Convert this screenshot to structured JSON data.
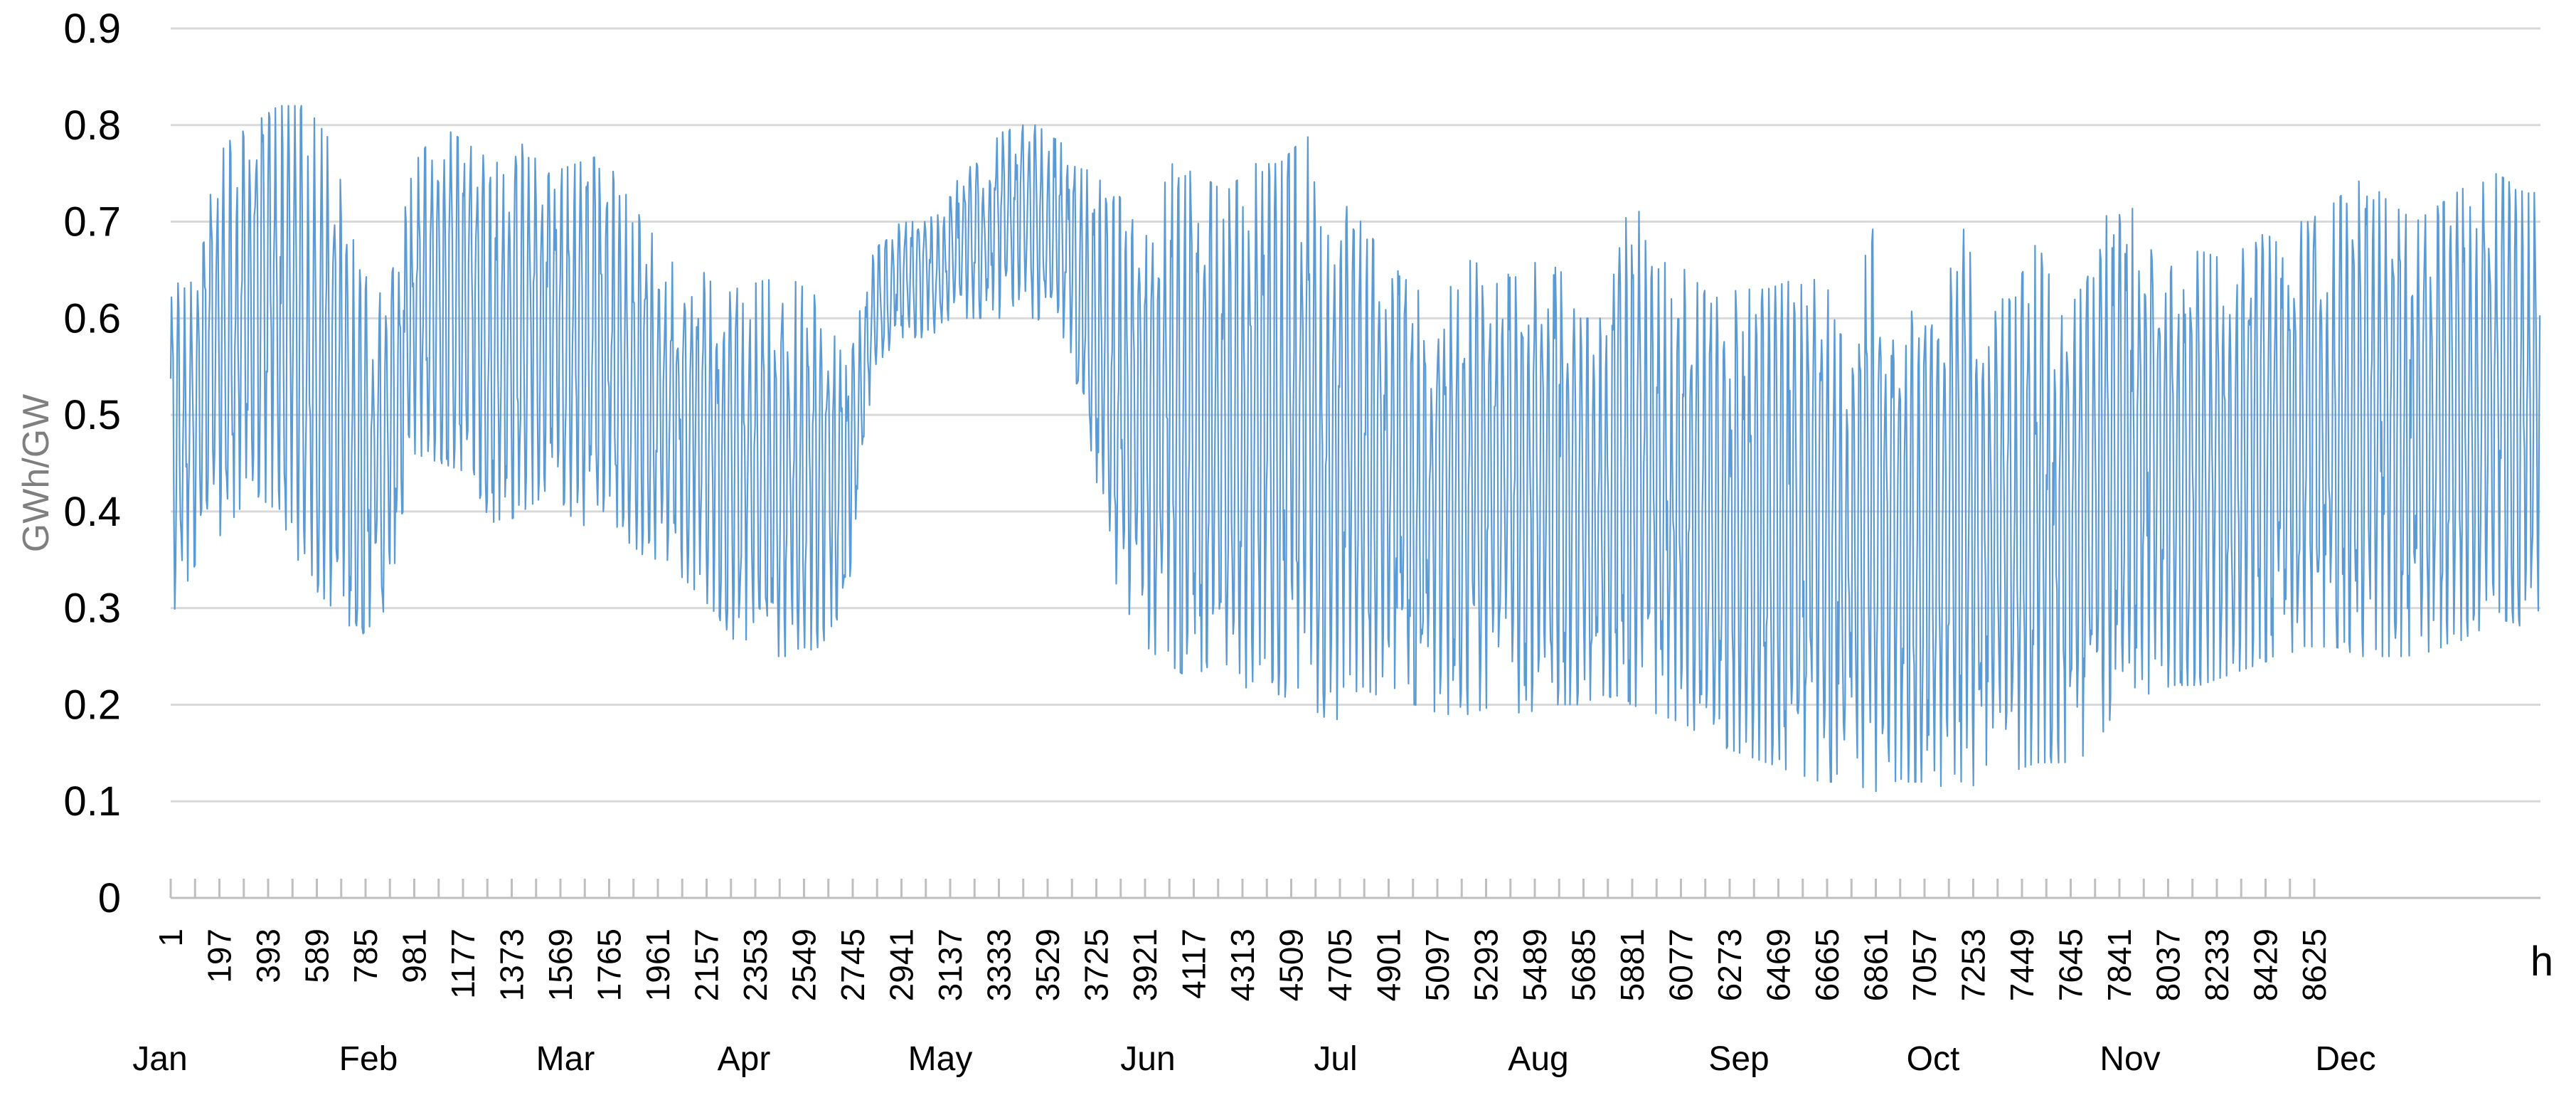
{
  "chart_data": {
    "type": "line",
    "title": "",
    "ylabel": "GWh/GW",
    "xlabel": "h",
    "ylim": [
      0,
      0.9
    ],
    "xlim": [
      1,
      8760
    ],
    "yticks": [
      "0",
      "0.1",
      "0.2",
      "0.3",
      "0.4",
      "0.5",
      "0.6",
      "0.7",
      "0.8",
      "0.9"
    ],
    "ytick_values": [
      0,
      0.1,
      0.2,
      0.3,
      0.4,
      0.5,
      0.6,
      0.7,
      0.8,
      0.9
    ],
    "xticks": [
      "1",
      "197",
      "393",
      "589",
      "785",
      "981",
      "1177",
      "1373",
      "1569",
      "1765",
      "1961",
      "2157",
      "2353",
      "2549",
      "2745",
      "2941",
      "3137",
      "3333",
      "3529",
      "3725",
      "3921",
      "4117",
      "4313",
      "4509",
      "4705",
      "4901",
      "5097",
      "5293",
      "5489",
      "5685",
      "5881",
      "6077",
      "6273",
      "6469",
      "6665",
      "6861",
      "7057",
      "7253",
      "7449",
      "7645",
      "7841",
      "8037",
      "8233",
      "8429",
      "8625"
    ],
    "months": [
      {
        "label": "Jan",
        "hour": 1
      },
      {
        "label": "Feb",
        "hour": 745
      },
      {
        "label": "Mar",
        "hour": 1417
      },
      {
        "label": "Apr",
        "hour": 2161
      },
      {
        "label": "May",
        "hour": 2881
      },
      {
        "label": "Jun",
        "hour": 3625
      },
      {
        "label": "Jul",
        "hour": 4345
      },
      {
        "label": "Aug",
        "hour": 5089
      },
      {
        "label": "Sep",
        "hour": 5833
      },
      {
        "label": "Oct",
        "hour": 6553
      },
      {
        "label": "Nov",
        "hour": 7297
      },
      {
        "label": "Dec",
        "hour": 8017
      }
    ],
    "grid": true,
    "legend": "none",
    "color": "#5b9bd5",
    "series": [
      {
        "description_note": "hourly capacity factor; daily min/max envelope read from chart",
        "envelope_hours": [
          1,
          100,
          200,
          300,
          400,
          500,
          600,
          700,
          800,
          900,
          1000,
          1100,
          1200,
          1300,
          1400,
          1500,
          1600,
          1700,
          1800,
          1900,
          2000,
          2100,
          2200,
          2300,
          2400,
          2500,
          2600,
          2700,
          2800,
          2900,
          3000,
          3100,
          3200,
          3300,
          3400,
          3500,
          3600,
          3700,
          3800,
          3900,
          4000,
          4100,
          4200,
          4300,
          4400,
          4500,
          4600,
          4700,
          4800,
          4900,
          5000,
          5100,
          5200,
          5300,
          5400,
          5500,
          5600,
          5700,
          5800,
          5900,
          6000,
          6100,
          6200,
          6300,
          6400,
          6500,
          6600,
          6700,
          6800,
          6900,
          7000,
          7100,
          7200,
          7300,
          7400,
          7500,
          7600,
          7700,
          7800,
          7900,
          8000,
          8100,
          8200,
          8300,
          8400,
          8500,
          8600,
          8700,
          8760
        ],
        "max": [
          0.62,
          0.68,
          0.78,
          0.8,
          0.82,
          0.82,
          0.78,
          0.65,
          0.62,
          0.76,
          0.8,
          0.78,
          0.76,
          0.78,
          0.75,
          0.76,
          0.77,
          0.72,
          0.68,
          0.64,
          0.65,
          0.63,
          0.64,
          0.64,
          0.62,
          0.55,
          0.67,
          0.7,
          0.7,
          0.74,
          0.77,
          0.8,
          0.8,
          0.78,
          0.75,
          0.73,
          0.68,
          0.76,
          0.75,
          0.73,
          0.76,
          0.76,
          0.79,
          0.73,
          0.7,
          0.66,
          0.63,
          0.62,
          0.66,
          0.65,
          0.64,
          0.68,
          0.6,
          0.6,
          0.73,
          0.66,
          0.65,
          0.62,
          0.63,
          0.63,
          0.64,
          0.64,
          0.6,
          0.7,
          0.6,
          0.62,
          0.72,
          0.62,
          0.62,
          0.68,
          0.6,
          0.65,
          0.75,
          0.68,
          0.66,
          0.67,
          0.66,
          0.68,
          0.7,
          0.7,
          0.72,
          0.75,
          0.72,
          0.7,
          0.72,
          0.74,
          0.75,
          0.73,
          0.73
        ],
        "min": [
          0.29,
          0.35,
          0.38,
          0.42,
          0.4,
          0.33,
          0.3,
          0.27,
          0.3,
          0.46,
          0.45,
          0.44,
          0.38,
          0.4,
          0.42,
          0.38,
          0.4,
          0.36,
          0.35,
          0.33,
          0.3,
          0.26,
          0.25,
          0.25,
          0.26,
          0.3,
          0.55,
          0.58,
          0.58,
          0.6,
          0.6,
          0.6,
          0.6,
          0.58,
          0.45,
          0.32,
          0.26,
          0.24,
          0.22,
          0.21,
          0.22,
          0.21,
          0.2,
          0.18,
          0.22,
          0.2,
          0.2,
          0.19,
          0.19,
          0.2,
          0.19,
          0.2,
          0.2,
          0.21,
          0.2,
          0.19,
          0.18,
          0.16,
          0.15,
          0.14,
          0.13,
          0.12,
          0.12,
          0.11,
          0.12,
          0.12,
          0.11,
          0.12,
          0.13,
          0.14,
          0.14,
          0.15,
          0.2,
          0.21,
          0.22,
          0.22,
          0.23,
          0.24,
          0.25,
          0.26,
          0.26,
          0.25,
          0.25,
          0.25,
          0.26,
          0.27,
          0.29,
          0.28,
          0.3
        ]
      }
    ]
  }
}
